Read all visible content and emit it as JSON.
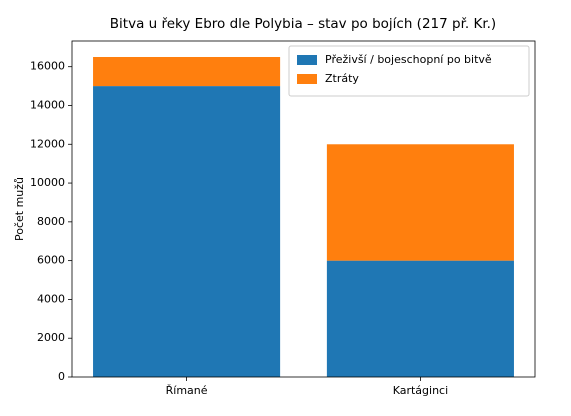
{
  "chart_data": {
    "type": "stacked_bar",
    "title": "Bitva u řeky Ebro dle Polybia – stav po bojích (217 př. Kr.)",
    "y_label": "Počet mužů",
    "categories": [
      "Římané",
      "Kartáginci"
    ],
    "series": [
      {
        "name": "Přeživší / bojeschopní po bitvě",
        "color": "#1f77b4",
        "values": [
          15000,
          6000
        ]
      },
      {
        "name": "Ztráty",
        "color": "#ff7f0e",
        "values": [
          1500,
          6000
        ]
      }
    ],
    "ylim": [
      0,
      17325
    ],
    "yticks": [
      0,
      2000,
      4000,
      6000,
      8000,
      10000,
      12000,
      14000,
      16000
    ],
    "legend": "upper right"
  }
}
